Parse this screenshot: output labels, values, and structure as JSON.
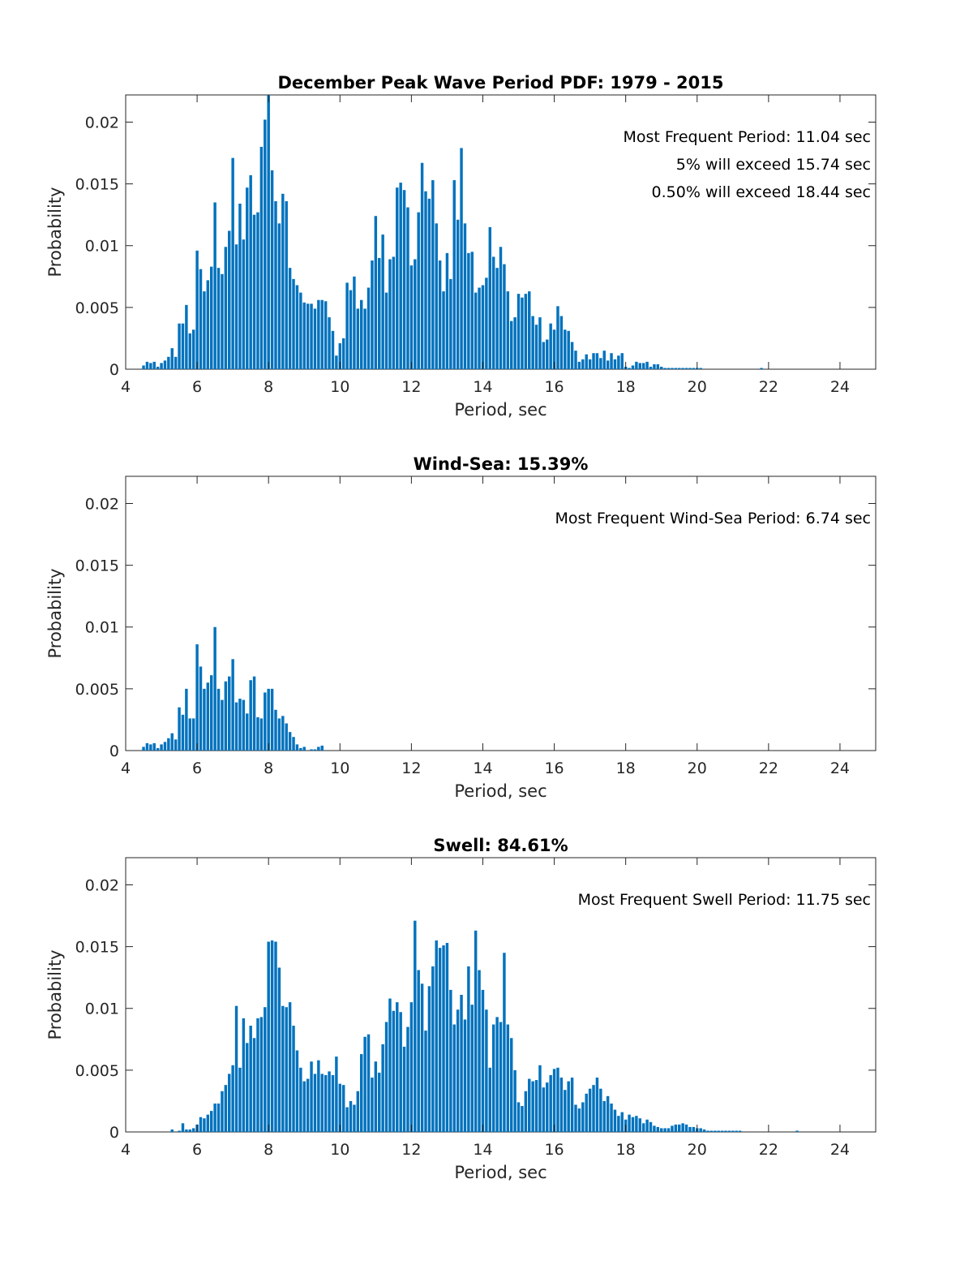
{
  "colors": {
    "bar": "#0072BD",
    "axis": "#262626"
  },
  "chart_data": [
    {
      "type": "bar",
      "title": "December Peak Wave Period PDF: 1979 - 2015",
      "xlabel": "Period, sec",
      "ylabel": "Probability",
      "xlim": [
        4,
        25
      ],
      "ylim": [
        0,
        0.0222
      ],
      "xticks": [
        "4",
        "6",
        "8",
        "10",
        "12",
        "14",
        "16",
        "18",
        "20",
        "22",
        "24"
      ],
      "yticks": [
        "0",
        "0.005",
        "0.01",
        "0.015",
        "0.02"
      ],
      "annotations": [
        "Most Frequent Period: 11.04 sec",
        "5% will exceed 15.74 sec",
        "0.50% will exceed 18.44 sec"
      ],
      "bin_start": 4.5,
      "bin_width": 0.1,
      "values": [
        0.0003,
        0.0006,
        0.0005,
        0.0006,
        0.0002,
        0.0005,
        0.0007,
        0.001,
        0.0017,
        0.001,
        0.0037,
        0.0037,
        0.0052,
        0.0029,
        0.0032,
        0.0096,
        0.0081,
        0.0063,
        0.0072,
        0.0083,
        0.0135,
        0.0082,
        0.0077,
        0.0099,
        0.0112,
        0.0171,
        0.0101,
        0.0134,
        0.0105,
        0.0147,
        0.0157,
        0.0125,
        0.0127,
        0.018,
        0.0202,
        0.0222,
        0.0161,
        0.0136,
        0.0118,
        0.0142,
        0.0136,
        0.0082,
        0.0073,
        0.0068,
        0.0062,
        0.0054,
        0.0053,
        0.0053,
        0.0049,
        0.0056,
        0.0056,
        0.0055,
        0.0042,
        0.0031,
        0.0011,
        0.0021,
        0.0025,
        0.007,
        0.0064,
        0.0075,
        0.0049,
        0.0056,
        0.0049,
        0.0066,
        0.0088,
        0.0124,
        0.009,
        0.0109,
        0.0062,
        0.0089,
        0.0091,
        0.0147,
        0.0151,
        0.0145,
        0.0131,
        0.0084,
        0.0089,
        0.0127,
        0.0167,
        0.0144,
        0.0138,
        0.0153,
        0.0118,
        0.0088,
        0.0063,
        0.0094,
        0.0073,
        0.0153,
        0.0121,
        0.0179,
        0.0118,
        0.0094,
        0.0095,
        0.0062,
        0.0066,
        0.0068,
        0.0074,
        0.0115,
        0.0091,
        0.0082,
        0.0099,
        0.0085,
        0.0063,
        0.0039,
        0.0042,
        0.0061,
        0.0058,
        0.0061,
        0.0063,
        0.0043,
        0.0036,
        0.0042,
        0.0022,
        0.0024,
        0.0037,
        0.0032,
        0.0051,
        0.0043,
        0.0032,
        0.0031,
        0.0022,
        0.0015,
        0.0006,
        0.0008,
        0.0012,
        0.0008,
        0.0013,
        0.0013,
        0.0009,
        0.0015,
        0.0007,
        0.0013,
        0.0008,
        0.0011,
        0.0013,
        0.0002,
        0.0001,
        0.0003,
        0.0006,
        0.0005,
        0.0005,
        0.0006,
        0.0002,
        0.0004,
        0.0004,
        0.0002,
        0.0001,
        0.0001,
        0.0001,
        0.0001,
        0.0001,
        0.0001,
        0.0001,
        0.0001,
        0.0001,
        0.0001,
        0.0001,
        0,
        0,
        0,
        0,
        0,
        0,
        0,
        0,
        0,
        0,
        0,
        0,
        0,
        0,
        0,
        0,
        0.0001
      ]
    },
    {
      "type": "bar",
      "title": "Wind-Sea: 15.39%",
      "xlabel": "Period, sec",
      "ylabel": "Probability",
      "xlim": [
        4,
        25
      ],
      "ylim": [
        0,
        0.0222
      ],
      "xticks": [
        "4",
        "6",
        "8",
        "10",
        "12",
        "14",
        "16",
        "18",
        "20",
        "22",
        "24"
      ],
      "yticks": [
        "0",
        "0.005",
        "0.01",
        "0.015",
        "0.02"
      ],
      "annotations": [
        "Most Frequent Wind-Sea Period: 6.74 sec"
      ],
      "bin_start": 4.5,
      "bin_width": 0.1,
      "values": [
        0.0003,
        0.0006,
        0.0005,
        0.0006,
        0.0002,
        0.0005,
        0.0007,
        0.001,
        0.0014,
        0.0009,
        0.0035,
        0.0029,
        0.005,
        0.0026,
        0.0026,
        0.0086,
        0.0068,
        0.005,
        0.0055,
        0.0061,
        0.01,
        0.005,
        0.0041,
        0.0056,
        0.006,
        0.0074,
        0.0039,
        0.0042,
        0.0041,
        0.003,
        0.0057,
        0.006,
        0.0027,
        0.0026,
        0.0047,
        0.005,
        0.005,
        0.0033,
        0.0026,
        0.0028,
        0.0022,
        0.0015,
        0.0011,
        0.0005,
        0.0002,
        0.0003,
        0,
        0.0001,
        0.0001,
        0.0003,
        0.0004
      ]
    },
    {
      "type": "bar",
      "title": "Swell: 84.61%",
      "xlabel": "Period, sec",
      "ylabel": "Probability",
      "xlim": [
        4,
        25
      ],
      "ylim": [
        0,
        0.0222
      ],
      "xticks": [
        "4",
        "6",
        "8",
        "10",
        "12",
        "14",
        "16",
        "18",
        "20",
        "22",
        "24"
      ],
      "yticks": [
        "0",
        "0.005",
        "0.01",
        "0.015",
        "0.02"
      ],
      "annotations": [
        "Most Frequent Swell Period: 11.75 sec"
      ],
      "bin_start": 5.3,
      "bin_width": 0.1,
      "values": [
        0.0002,
        0,
        0.0001,
        0.0007,
        0.0002,
        0.0002,
        0.0003,
        0.0006,
        0.0012,
        0.0011,
        0.0014,
        0.0017,
        0.0023,
        0.0023,
        0.0033,
        0.0038,
        0.0047,
        0.0054,
        0.0102,
        0.0052,
        0.0092,
        0.0072,
        0.0086,
        0.0076,
        0.0092,
        0.0093,
        0.0101,
        0.0154,
        0.0155,
        0.0154,
        0.0133,
        0.0102,
        0.0101,
        0.0105,
        0.0086,
        0.0066,
        0.0052,
        0.0041,
        0.0043,
        0.0057,
        0.0047,
        0.0058,
        0.0047,
        0.0046,
        0.0049,
        0.0046,
        0.0061,
        0.0039,
        0.0038,
        0.002,
        0.0025,
        0.0022,
        0.0033,
        0.0063,
        0.0077,
        0.0079,
        0.0044,
        0.0057,
        0.0048,
        0.0071,
        0.0089,
        0.0108,
        0.0098,
        0.0105,
        0.0097,
        0.0069,
        0.0085,
        0.0105,
        0.0171,
        0.0131,
        0.012,
        0.0082,
        0.0118,
        0.0134,
        0.0155,
        0.0149,
        0.0151,
        0.0153,
        0.0115,
        0.0087,
        0.0099,
        0.0111,
        0.0091,
        0.0134,
        0.0103,
        0.0163,
        0.0131,
        0.0115,
        0.0099,
        0.0052,
        0.0087,
        0.0093,
        0.0089,
        0.0145,
        0.0087,
        0.0076,
        0.005,
        0.0024,
        0.0021,
        0.0033,
        0.0043,
        0.0041,
        0.0042,
        0.0054,
        0.0036,
        0.004,
        0.0046,
        0.0051,
        0.0052,
        0.0044,
        0.0034,
        0.0041,
        0.0044,
        0.0022,
        0.0019,
        0.0024,
        0.0031,
        0.0035,
        0.0038,
        0.0044,
        0.0035,
        0.0025,
        0.0029,
        0.0023,
        0.0018,
        0.0013,
        0.0016,
        0.001,
        0.0014,
        0.0012,
        0.0013,
        0.0011,
        0.0007,
        0.001,
        0.0008,
        0.0005,
        0.0004,
        0.0003,
        0.0003,
        0.0003,
        0.0005,
        0.0006,
        0.0006,
        0.0007,
        0.0006,
        0.0004,
        0.0004,
        0.0003,
        0.0003,
        0.0002,
        0.0001,
        0.0001,
        0.0001,
        0.0001,
        0.0001,
        0.0001,
        0.0001,
        0.0001,
        0.0001,
        0.0001,
        0,
        0,
        0,
        0,
        0,
        0,
        0,
        0,
        0,
        0,
        0,
        0,
        0,
        0,
        0,
        0.0001
      ]
    }
  ]
}
